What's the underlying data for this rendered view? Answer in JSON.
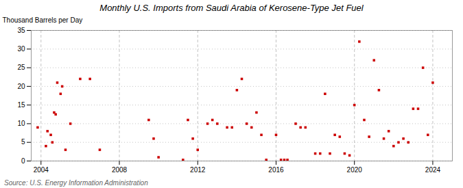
{
  "chart_data": {
    "type": "scatter",
    "title": "Monthly U.S. Imports from Saudi Arabia of Kerosene-Type Jet Fuel",
    "ylabel": "Thousand Barrels per Day",
    "source": "Source: U.S. Energy Information Administration",
    "color": "#cc0000",
    "marker": "square",
    "grid": true,
    "xlim": [
      2003.5,
      2025.0
    ],
    "xticks": [
      2004,
      2008,
      2012,
      2016,
      2020,
      2024
    ],
    "ylim": [
      0,
      35
    ],
    "yticks": [
      0,
      5,
      10,
      15,
      20,
      25,
      30,
      35
    ],
    "x": [
      2003.83,
      2004.25,
      2004.33,
      2004.5,
      2004.58,
      2004.67,
      2004.75,
      2004.83,
      2005.0,
      2005.08,
      2005.25,
      2005.5,
      2006.0,
      2006.5,
      2007.0,
      2009.5,
      2009.75,
      2010.0,
      2011.25,
      2011.5,
      2011.75,
      2012.0,
      2012.5,
      2012.75,
      2013.0,
      2013.5,
      2013.75,
      2014.0,
      2014.25,
      2014.5,
      2014.75,
      2015.0,
      2015.25,
      2015.5,
      2016.0,
      2016.25,
      2016.42,
      2016.58,
      2017.0,
      2017.25,
      2017.5,
      2018.0,
      2018.25,
      2018.5,
      2018.75,
      2019.0,
      2019.25,
      2019.5,
      2019.75,
      2020.0,
      2020.25,
      2020.5,
      2020.75,
      2021.0,
      2021.25,
      2021.5,
      2021.75,
      2022.0,
      2022.25,
      2022.5,
      2022.75,
      2023.0,
      2023.25,
      2023.5,
      2023.75,
      2024.0
    ],
    "values": [
      9.0,
      4.0,
      8.0,
      7.0,
      5.0,
      13.0,
      12.5,
      21.0,
      18.0,
      20.0,
      3.0,
      10.0,
      22.0,
      22.0,
      3.0,
      11.0,
      6.0,
      1.0,
      0.3,
      11.0,
      6.0,
      3.0,
      10.0,
      11.0,
      10.0,
      9.0,
      9.0,
      19.0,
      22.0,
      10.0,
      9.0,
      13.0,
      7.0,
      0.3,
      7.0,
      0.3,
      0.3,
      0.3,
      10.0,
      9.0,
      9.0,
      2.0,
      2.0,
      18.0,
      2.0,
      7.0,
      6.5,
      2.0,
      1.5,
      15.0,
      32.0,
      11.0,
      6.5,
      27.0,
      19.0,
      6.0,
      8.0,
      4.0,
      5.0,
      6.0,
      5.0,
      14.0,
      14.0,
      25.0,
      7.0,
      21.0
    ]
  }
}
